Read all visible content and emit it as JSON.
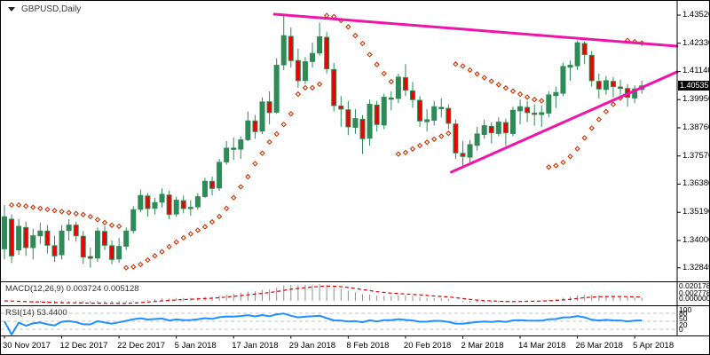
{
  "symbol_label": "GBPUSD,Daily",
  "price_axis": {
    "current_price": "1.40535",
    "labels": [
      "1.43520",
      "1.42330",
      "1.41140",
      "1.39950",
      "1.38760",
      "1.37570",
      "1.36380",
      "1.35190",
      "1.34000",
      "1.32845"
    ]
  },
  "time_axis": {
    "labels": [
      "30 Nov 2017",
      "12 Dec 2017",
      "22 Dec 2017",
      "5 Jan 2018",
      "17 Jan 2018",
      "29 Jan 2018",
      "8 Feb 2018",
      "20 Feb 2018",
      "2 Mar 2018",
      "14 Mar 2018",
      "26 Mar 2018",
      "5 Apr 2018"
    ]
  },
  "indicators": {
    "macd": {
      "label": "MACD(12,26,9) 0.003724 0.005128",
      "name": "MACD",
      "params": [
        12,
        26,
        9
      ],
      "current_values": [
        "0.003724",
        "0.005128"
      ],
      "axis_labels": [
        "0.020178",
        "0.002778",
        "0.000000"
      ]
    },
    "rsi": {
      "label": "RSI(14) 53.4400",
      "name": "RSI",
      "params": [
        14
      ],
      "current_value": "53.4400",
      "levels": [
        20,
        50,
        80
      ],
      "axis_labels": [
        "100",
        "80",
        "50",
        "20",
        "0"
      ]
    }
  },
  "colors": {
    "background": "#ffffff",
    "axis": "#000000",
    "bull_candle": "#2e8b57",
    "bear_candle": "#ee0000",
    "candle_outline": "#2e8b57",
    "parabolic_sar": "#cc3300",
    "trendline": "#ee15a8",
    "macd_histogram": "#8f8f8f",
    "macd_signal": "#e00000",
    "rsi_line": "#1e90ff",
    "rsi_levels": "#c4c4c4",
    "price_badge_bg": "#000000",
    "price_badge_text": "#ffffff"
  },
  "chart_data": {
    "type": "candlestick",
    "symbol": "GBPUSD",
    "timeframe": "Daily",
    "title": "GBPUSD,Daily",
    "ylim": [
      1.32845,
      1.4352
    ],
    "y_ticks": [
      1.4352,
      1.4233,
      1.4114,
      1.3995,
      1.3876,
      1.3757,
      1.3638,
      1.3519,
      1.34,
      1.32845
    ],
    "x_tick_labels": [
      "30 Nov 2017",
      "12 Dec 2017",
      "22 Dec 2017",
      "5 Jan 2018",
      "17 Jan 2018",
      "29 Jan 2018",
      "8 Feb 2018",
      "20 Feb 2018",
      "2 Mar 2018",
      "14 Mar 2018",
      "26 Mar 2018",
      "5 Apr 2018"
    ],
    "bars_per_x_tick": 8,
    "current_price": 1.40535,
    "candles": [
      [
        1.3365,
        1.355,
        1.332,
        1.35
      ],
      [
        1.349,
        1.351,
        1.3305,
        1.3335
      ],
      [
        1.336,
        1.349,
        1.334,
        1.346
      ],
      [
        1.3455,
        1.348,
        1.3335,
        1.337
      ],
      [
        1.337,
        1.345,
        1.332,
        1.342
      ],
      [
        1.342,
        1.3475,
        1.3385,
        1.344
      ],
      [
        1.344,
        1.3465,
        1.3345,
        1.338
      ],
      [
        1.3378,
        1.342,
        1.331,
        1.3335
      ],
      [
        1.334,
        1.3465,
        1.332,
        1.344
      ],
      [
        1.3442,
        1.349,
        1.34,
        1.3465
      ],
      [
        1.3465,
        1.348,
        1.3395,
        1.342
      ],
      [
        1.3418,
        1.344,
        1.3302,
        1.333
      ],
      [
        1.3332,
        1.337,
        1.3285,
        1.3325
      ],
      [
        1.3326,
        1.3455,
        1.331,
        1.344
      ],
      [
        1.3438,
        1.346,
        1.336,
        1.338
      ],
      [
        1.3378,
        1.34,
        1.33,
        1.332
      ],
      [
        1.3322,
        1.341,
        1.3305,
        1.3375
      ],
      [
        1.3376,
        1.3455,
        1.336,
        1.344
      ],
      [
        1.3442,
        1.3545,
        1.343,
        1.353
      ],
      [
        1.3532,
        1.3615,
        1.352,
        1.359
      ],
      [
        1.3588,
        1.36,
        1.35,
        1.3535
      ],
      [
        1.3536,
        1.358,
        1.351,
        1.356
      ],
      [
        1.3562,
        1.362,
        1.354,
        1.3595
      ],
      [
        1.3592,
        1.361,
        1.349,
        1.351
      ],
      [
        1.3512,
        1.3585,
        1.35,
        1.357
      ],
      [
        1.3568,
        1.359,
        1.3515,
        1.3535
      ],
      [
        1.3536,
        1.357,
        1.3505,
        1.354
      ],
      [
        1.3542,
        1.36,
        1.353,
        1.3585
      ],
      [
        1.3586,
        1.3665,
        1.358,
        1.365
      ],
      [
        1.365,
        1.367,
        1.359,
        1.362
      ],
      [
        1.3622,
        1.3745,
        1.361,
        1.373
      ],
      [
        1.3732,
        1.382,
        1.372,
        1.379
      ],
      [
        1.379,
        1.3835,
        1.374,
        1.3785
      ],
      [
        1.3786,
        1.384,
        1.3745,
        1.3825
      ],
      [
        1.3826,
        1.3945,
        1.382,
        1.3905
      ],
      [
        1.3905,
        1.393,
        1.383,
        1.386
      ],
      [
        1.3862,
        1.4005,
        1.385,
        1.3985
      ],
      [
        1.3986,
        1.403,
        1.389,
        1.394
      ],
      [
        1.3942,
        1.417,
        1.3935,
        1.414
      ],
      [
        1.4142,
        1.435,
        1.412,
        1.4265
      ],
      [
        1.4262,
        1.43,
        1.413,
        1.416
      ],
      [
        1.416,
        1.421,
        1.4045,
        1.4075
      ],
      [
        1.4076,
        1.4175,
        1.406,
        1.4155
      ],
      [
        1.4156,
        1.4235,
        1.413,
        1.419
      ],
      [
        1.4192,
        1.432,
        1.418,
        1.426
      ],
      [
        1.4258,
        1.428,
        1.4105,
        1.4125
      ],
      [
        1.4122,
        1.415,
        1.3945,
        1.397
      ],
      [
        1.3968,
        1.401,
        1.388,
        1.3955
      ],
      [
        1.3952,
        1.399,
        1.3845,
        1.388
      ],
      [
        1.3878,
        1.3955,
        1.385,
        1.3915
      ],
      [
        1.3912,
        1.393,
        1.3765,
        1.383
      ],
      [
        1.3832,
        1.3995,
        1.38,
        1.3975
      ],
      [
        1.3972,
        1.399,
        1.386,
        1.389
      ],
      [
        1.3888,
        1.402,
        1.387,
        1.4005
      ],
      [
        1.4002,
        1.403,
        1.395,
        1.4
      ],
      [
        1.4,
        1.4105,
        1.398,
        1.409
      ],
      [
        1.4088,
        1.4145,
        1.401,
        1.4035
      ],
      [
        1.4032,
        1.407,
        1.396,
        1.3995
      ],
      [
        1.3992,
        1.401,
        1.388,
        1.3905
      ],
      [
        1.3902,
        1.3955,
        1.386,
        1.391
      ],
      [
        1.3908,
        1.399,
        1.3885,
        1.3965
      ],
      [
        1.3962,
        1.4,
        1.392,
        1.396
      ],
      [
        1.3958,
        1.3975,
        1.387,
        1.3895
      ],
      [
        1.3892,
        1.391,
        1.3745,
        1.377
      ],
      [
        1.3768,
        1.382,
        1.371,
        1.3755
      ],
      [
        1.3752,
        1.3825,
        1.373,
        1.3805
      ],
      [
        1.3802,
        1.388,
        1.378,
        1.385
      ],
      [
        1.3848,
        1.391,
        1.383,
        1.3885
      ],
      [
        1.3882,
        1.39,
        1.381,
        1.3855
      ],
      [
        1.3852,
        1.392,
        1.384,
        1.39
      ],
      [
        1.3898,
        1.3915,
        1.38,
        1.3855
      ],
      [
        1.3852,
        1.3965,
        1.384,
        1.395
      ],
      [
        1.3948,
        1.3995,
        1.389,
        1.3965
      ],
      [
        1.3962,
        1.399,
        1.39,
        1.394
      ],
      [
        1.3938,
        1.3975,
        1.3885,
        1.3935
      ],
      [
        1.3932,
        1.397,
        1.388,
        1.394
      ],
      [
        1.3938,
        1.403,
        1.392,
        1.4015
      ],
      [
        1.4012,
        1.405,
        1.396,
        1.4025
      ],
      [
        1.4022,
        1.415,
        1.401,
        1.4135
      ],
      [
        1.4132,
        1.416,
        1.4075,
        1.414
      ],
      [
        1.4138,
        1.4245,
        1.412,
        1.4235
      ],
      [
        1.4232,
        1.424,
        1.4145,
        1.4185
      ],
      [
        1.4182,
        1.42,
        1.405,
        1.4075
      ],
      [
        1.4072,
        1.4105,
        1.4,
        1.404
      ],
      [
        1.4038,
        1.4095,
        1.4015,
        1.4075
      ],
      [
        1.4072,
        1.409,
        1.4005,
        1.405
      ],
      [
        1.4048,
        1.408,
        1.4015,
        1.4045
      ],
      [
        1.4042,
        1.406,
        1.3965,
        1.4005
      ],
      [
        1.4002,
        1.4055,
        1.398,
        1.404
      ],
      [
        1.4038,
        1.4075,
        1.402,
        1.4053
      ]
    ],
    "overlays": {
      "parabolic_sar": {
        "step": 0.02,
        "max": 0.2
      },
      "trendlines": [
        {
          "name": "descending-resistance",
          "from": {
            "bar": 37.7,
            "price": 1.43557
          },
          "to": {
            "bar": 93.9,
            "price": 1.42207
          }
        },
        {
          "name": "ascending-support",
          "from": {
            "bar": 62.4,
            "price": 1.3689
          },
          "to": {
            "bar": 93.9,
            "price": 1.4112
          }
        }
      ]
    }
  }
}
